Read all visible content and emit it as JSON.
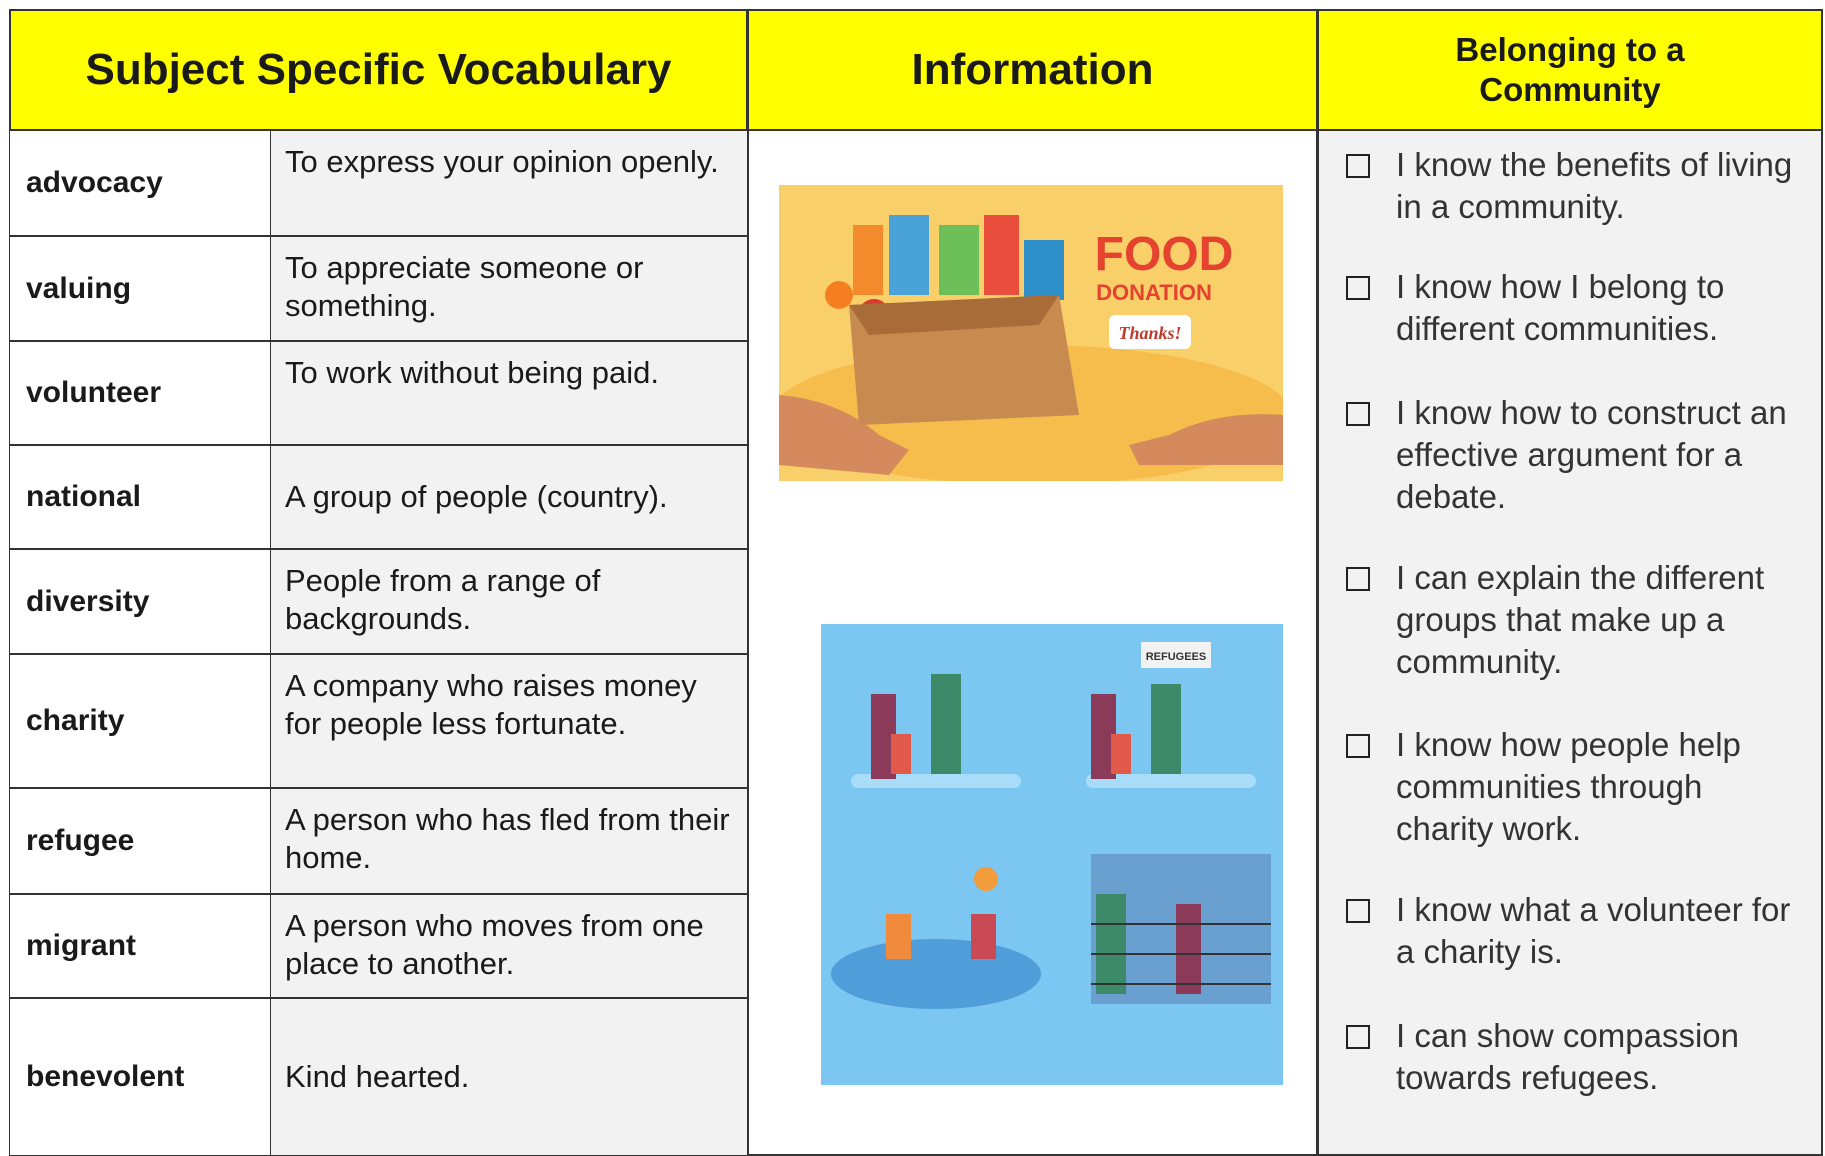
{
  "header": {
    "vocabulary": "Subject Specific Vocabulary",
    "information": "Information",
    "checklist": "Belonging to a Community"
  },
  "vocabulary": [
    {
      "term": "advocacy",
      "definition": "To express your opinion openly."
    },
    {
      "term": "valuing",
      "definition": "To appreciate someone or something."
    },
    {
      "term": "volunteer",
      "definition": "To work without being paid."
    },
    {
      "term": "national",
      "definition": "A group of people (country)."
    },
    {
      "term": "diversity",
      "definition": "People from a range of backgrounds."
    },
    {
      "term": "charity",
      "definition": "A company who raises money for people less fortunate."
    },
    {
      "term": "refugee",
      "definition": "A person who has fled from their home."
    },
    {
      "term": "migrant",
      "definition": "A person who moves from one place to another."
    },
    {
      "term": "benevolent",
      "definition": "Kind hearted."
    }
  ],
  "images": {
    "food_donation": {
      "heading": "FOOD",
      "subheading": "DONATION",
      "tag": "Thanks!"
    },
    "refugees": {
      "sign": "REFUGEES"
    }
  },
  "checklist": [
    "I know the benefits of living in a community.",
    "I know how I belong to different communities.",
    "I know how to construct an effective argument for a debate.",
    "I can explain the different groups that make up a community.",
    "I know how people help communities through charity work.",
    "I know what a volunteer for a charity is.",
    "I can show compassion towards refugees."
  ]
}
